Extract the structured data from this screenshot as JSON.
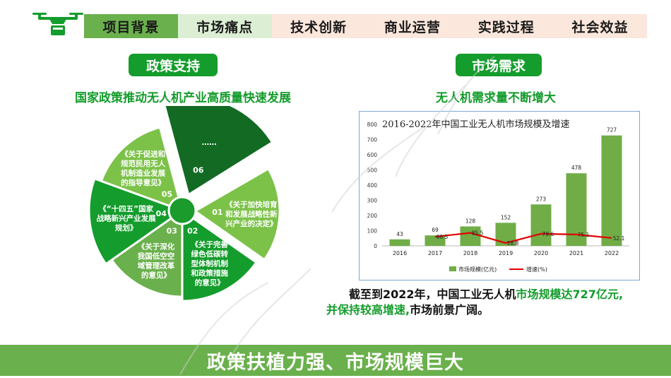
{
  "nav": {
    "tabs": [
      "项目背景",
      "市场痛点",
      "技术创新",
      "商业运营",
      "实践过程",
      "社会效益"
    ]
  },
  "left": {
    "pill": "政策支持",
    "subtitle": "国家政策推动无人机产业高质量快速发展",
    "center_color": "#1a9b2c",
    "segments": [
      {
        "num": "01",
        "lines": [
          "《关于加快培育",
          "和发展战略性新",
          "兴产业的决定》"
        ],
        "color": "#7cc249"
      },
      {
        "num": "02",
        "lines": [
          "《关于完善",
          "绿色低碳转",
          "型体制机制",
          "和政策措施",
          "的意见》"
        ],
        "color": "#149c2c"
      },
      {
        "num": "03",
        "lines": [
          "《关于深化",
          "我国低空空",
          "域管理改革",
          "的意见》"
        ],
        "color": "#6ab04c"
      },
      {
        "num": "04",
        "lines": [
          "《“十四五”国家",
          "战略新兴产业发展",
          "规划》"
        ],
        "color": "#149c2c"
      },
      {
        "num": "05",
        "lines": [
          "《关于促进和",
          "规范民用无人",
          "机制造业发展",
          "的指导意见》"
        ],
        "color": "#7cc249"
      },
      {
        "num": "06",
        "lines": [
          "……"
        ],
        "color": "#136a23"
      }
    ]
  },
  "right": {
    "pill": "市场需求",
    "subtitle": "无人机需求量不断增大"
  },
  "chart_data": {
    "type": "bar",
    "title": "2016-2022年中国工业无人机市场规模及增速",
    "categories": [
      "2016",
      "2017",
      "2018",
      "2019",
      "2020",
      "2021",
      "2022"
    ],
    "ylim": [
      0,
      800
    ],
    "yticks": [
      0,
      100,
      200,
      300,
      400,
      500,
      600,
      700,
      800
    ],
    "series": [
      {
        "name": "市场规模(亿元)",
        "type": "bar",
        "values": [
          43,
          69,
          128,
          152,
          273,
          478,
          727
        ],
        "color": "#70ad47"
      },
      {
        "name": "增速(%)",
        "type": "line",
        "values": [
          null,
          60.5,
          85.5,
          18.8,
          79.6,
          75.1,
          52.1
        ],
        "color": "#e00000"
      }
    ],
    "legend": "bottom"
  },
  "conclusion": {
    "p1": "截至到2022年，中国工业无人机",
    "h1": "市场规模达727亿元,",
    "h2": "并保持较高增速,",
    "p2": "市场前景广阔。"
  },
  "footer": {
    "text": "政策扶植力强、市场规模巨大"
  }
}
